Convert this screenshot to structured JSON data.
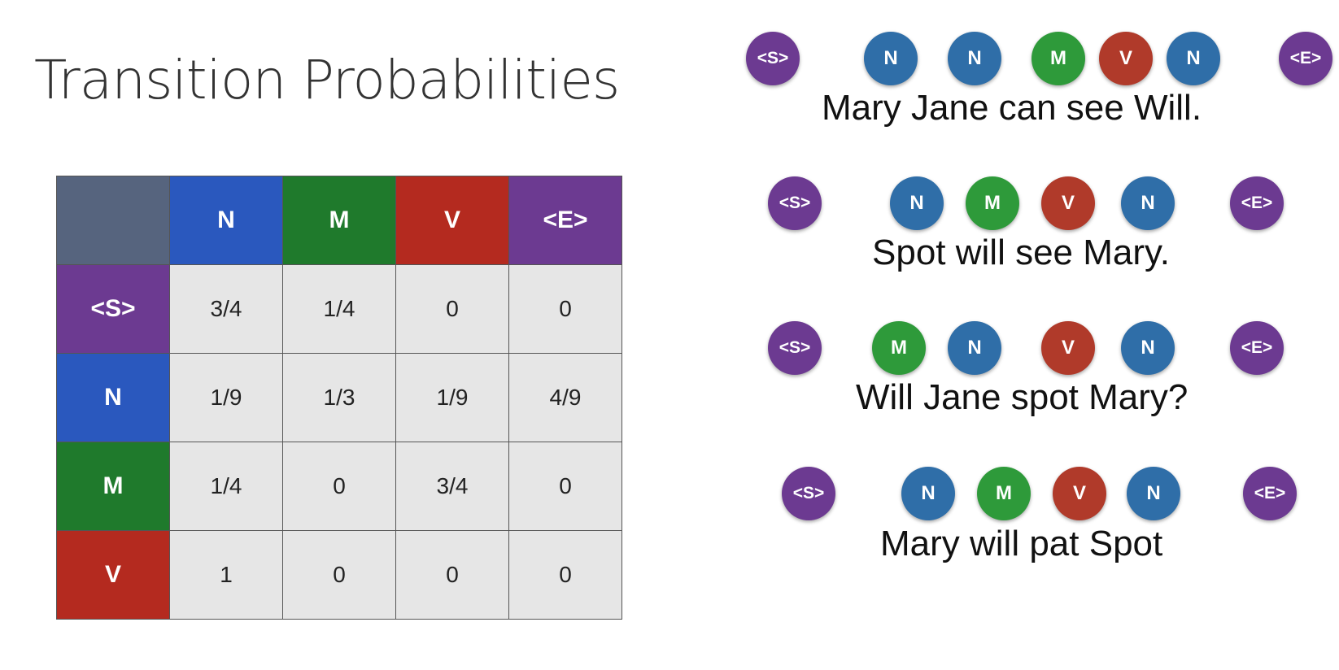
{
  "title": "Transition Probabilities",
  "colors": {
    "corner": "#56647e",
    "N": "#2a58be",
    "M": "#1f7a2c",
    "V": "#b42a1f",
    "S": "#6c3a91",
    "E": "#6c3a91",
    "bubble_N": "#2f6ea8",
    "bubble_M": "#2e9a3a",
    "bubble_V": "#b03a2a",
    "bubble_SE": "#6c3a91",
    "cell": "#e6e6e6"
  },
  "table": {
    "corner": "",
    "columns": [
      "N",
      "M",
      "V",
      "<E>"
    ],
    "rows": [
      {
        "label": "<S>",
        "values": [
          "3/4",
          "1/4",
          "0",
          "0"
        ]
      },
      {
        "label": "N",
        "values": [
          "1/9",
          "1/3",
          "1/9",
          "4/9"
        ]
      },
      {
        "label": "M",
        "values": [
          "1/4",
          "0",
          "3/4",
          "0"
        ]
      },
      {
        "label": "V",
        "values": [
          "1",
          "0",
          "0",
          "0"
        ]
      }
    ]
  },
  "examples": [
    {
      "tags": [
        "<S>",
        "N",
        "N",
        "M",
        "V",
        "N",
        "<E>"
      ],
      "sentence": "Mary Jane can see Will."
    },
    {
      "tags": [
        "<S>",
        "N",
        "M",
        "V",
        "N",
        "<E>"
      ],
      "sentence": "Spot will see Mary."
    },
    {
      "tags": [
        "<S>",
        "M",
        "N",
        "V",
        "N",
        "<E>"
      ],
      "sentence": "Will Jane spot Mary?"
    },
    {
      "tags": [
        "<S>",
        "N",
        "M",
        "V",
        "N",
        "<E>"
      ],
      "sentence": "Mary will pat Spot"
    }
  ]
}
